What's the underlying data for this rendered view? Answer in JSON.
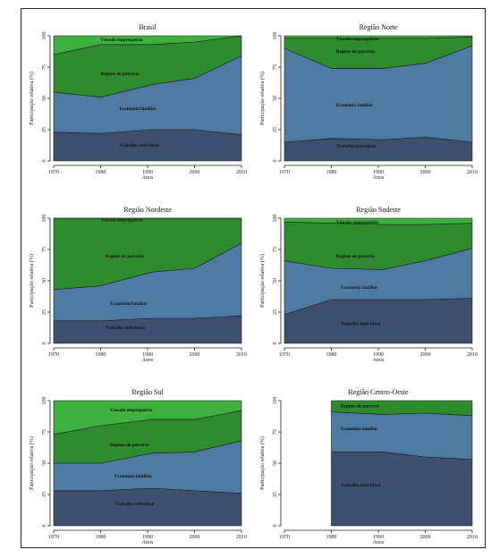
{
  "colors": {
    "trabalho": "#3f4f70",
    "economia": "#4f7ba3",
    "regime": "#2e8b2e",
    "vinculo": "#3fb03f",
    "outline": "#1a1a1a"
  },
  "chart_data": [
    {
      "type": "area",
      "title": "Brasil",
      "xlabel": "Anos",
      "ylabel": "Participação relativa (%)",
      "x": [
        1970,
        1980,
        1991,
        2000,
        2010
      ],
      "xlim": [
        1970,
        2010
      ],
      "ylim": [
        0,
        100
      ],
      "xticks": [
        "1970",
        "1980",
        "1990",
        "2000",
        "2010"
      ],
      "yticks": [
        "0",
        "25",
        "50",
        "75",
        "100"
      ],
      "stacked": true,
      "grid": false,
      "series": [
        {
          "name": "Trabalho individual",
          "values": [
            23,
            22,
            25,
            25,
            21
          ]
        },
        {
          "name": "Economia familiar",
          "values": [
            32,
            29,
            36,
            41,
            63
          ]
        },
        {
          "name": "Regime de parceria",
          "values": [
            30,
            42,
            32,
            29,
            16
          ]
        },
        {
          "name": "Vínculo empregatício",
          "values": [
            15,
            7,
            7,
            5,
            0
          ]
        }
      ],
      "labels": [
        {
          "series": 0,
          "x": 1984,
          "y": 13
        },
        {
          "series": 1,
          "x": 1984,
          "y": 42
        },
        {
          "series": 2,
          "x": 1980,
          "y": 70
        },
        {
          "series": 3,
          "x": 1980,
          "y": 97
        }
      ]
    },
    {
      "type": "area",
      "title": "Região Norte",
      "xlabel": "Anos",
      "ylabel": "Participação relativa (%)",
      "x": [
        1970,
        1980,
        1991,
        2000,
        2010
      ],
      "xlim": [
        1970,
        2010
      ],
      "ylim": [
        0,
        100
      ],
      "xticks": [
        "1970",
        "1980",
        "1990",
        "2000",
        "2010"
      ],
      "yticks": [
        "0",
        "25",
        "50",
        "75",
        "100"
      ],
      "stacked": true,
      "grid": false,
      "series": [
        {
          "name": "Trabalho individual",
          "values": [
            15,
            18,
            17,
            19,
            15
          ]
        },
        {
          "name": "Economia familiar",
          "values": [
            75,
            56,
            57,
            59,
            77
          ]
        },
        {
          "name": "Regime de parceria",
          "values": [
            8,
            24,
            24,
            20,
            7
          ]
        },
        {
          "name": "Vínculo empregatício",
          "values": [
            2,
            2,
            2,
            2,
            1
          ]
        }
      ],
      "labels": [
        {
          "series": 0,
          "x": 1981,
          "y": 12
        },
        {
          "series": 1,
          "x": 1981,
          "y": 45
        },
        {
          "series": 2,
          "x": 1981,
          "y": 88
        },
        {
          "series": 3,
          "x": 1981,
          "y": 98
        }
      ]
    },
    {
      "type": "area",
      "title": "Região Nordeste",
      "xlabel": "Anos",
      "ylabel": "Participação relativa (%)",
      "x": [
        1970,
        1980,
        1991,
        2000,
        2010
      ],
      "xlim": [
        1970,
        2010
      ],
      "ylim": [
        0,
        100
      ],
      "xticks": [
        "1970",
        "1980",
        "1990",
        "2000",
        "2010"
      ],
      "yticks": [
        "0",
        "25",
        "50",
        "75",
        "100"
      ],
      "stacked": true,
      "grid": false,
      "series": [
        {
          "name": "Trabalho individual",
          "values": [
            18,
            18,
            20,
            20,
            22
          ]
        },
        {
          "name": "Economia familiar",
          "values": [
            25,
            28,
            37,
            40,
            58
          ]
        },
        {
          "name": "Regime de parceria",
          "values": [
            57,
            54,
            43,
            40,
            20
          ]
        },
        {
          "name": "Vínculo empregatício",
          "values": [
            0,
            0,
            0,
            0,
            0
          ]
        }
      ],
      "labels": [
        {
          "series": 0,
          "x": 1981,
          "y": 13
        },
        {
          "series": 1,
          "x": 1982,
          "y": 32
        },
        {
          "series": 2,
          "x": 1981,
          "y": 70
        },
        {
          "series": 3,
          "x": 1980,
          "y": 99
        }
      ]
    },
    {
      "type": "area",
      "title": "Região Sudeste",
      "xlabel": "Anos",
      "ylabel": "Participação relativa (%)",
      "x": [
        1970,
        1980,
        1991,
        2000,
        2010
      ],
      "xlim": [
        1970,
        2010
      ],
      "ylim": [
        0,
        100
      ],
      "xticks": [
        "1970",
        "1980",
        "1990",
        "2000",
        "2010"
      ],
      "yticks": [
        "0",
        "25",
        "50",
        "75",
        "100"
      ],
      "stacked": true,
      "grid": false,
      "series": [
        {
          "name": "Trabalho individual",
          "values": [
            23,
            35,
            35,
            35,
            36
          ]
        },
        {
          "name": "Economia familiar",
          "values": [
            43,
            25,
            24,
            31,
            40
          ]
        },
        {
          "name": "Regime de parceria",
          "values": [
            31,
            36,
            36,
            29,
            20
          ]
        },
        {
          "name": "Vínculo empregatício",
          "values": [
            3,
            4,
            5,
            5,
            4
          ]
        }
      ],
      "labels": [
        {
          "series": 0,
          "x": 1982,
          "y": 16
        },
        {
          "series": 1,
          "x": 1982,
          "y": 45
        },
        {
          "series": 2,
          "x": 1981,
          "y": 70
        },
        {
          "series": 3,
          "x": 1981,
          "y": 97
        }
      ]
    },
    {
      "type": "area",
      "title": "Região Sul",
      "xlabel": "Anos",
      "ylabel": "Participação relativa (%)",
      "x": [
        1970,
        1980,
        1991,
        2000,
        2010
      ],
      "xlim": [
        1970,
        2010
      ],
      "ylim": [
        0,
        100
      ],
      "xticks": [
        "1970",
        "1980",
        "1990",
        "2000",
        "2010"
      ],
      "yticks": [
        "0",
        "25",
        "50",
        "75",
        "100"
      ],
      "stacked": true,
      "grid": false,
      "series": [
        {
          "name": "Trabalho individual",
          "values": [
            28,
            28,
            30,
            28,
            26
          ]
        },
        {
          "name": "Economia familiar",
          "values": [
            22,
            22,
            28,
            31,
            42
          ]
        },
        {
          "name": "Regime de parceria",
          "values": [
            23,
            30,
            27,
            26,
            24
          ]
        },
        {
          "name": "Vínculo empregatício",
          "values": [
            27,
            20,
            15,
            15,
            8
          ]
        }
      ],
      "labels": [
        {
          "series": 0,
          "x": 1983,
          "y": 18
        },
        {
          "series": 1,
          "x": 1983,
          "y": 40
        },
        {
          "series": 2,
          "x": 1982,
          "y": 65
        },
        {
          "series": 3,
          "x": 1982,
          "y": 93
        }
      ]
    },
    {
      "type": "area",
      "title": "Região Centro-Oeste",
      "xlabel": "Anos",
      "ylabel": "Participação relativa (%)",
      "x": [
        1980,
        1991,
        2000,
        2010
      ],
      "xlim": [
        1970,
        2010
      ],
      "ylim": [
        0,
        100
      ],
      "xticks": [
        "1970",
        "1980",
        "1990",
        "2000",
        "2010"
      ],
      "yticks": [
        "0",
        "25",
        "50",
        "75",
        "100"
      ],
      "stacked": true,
      "grid": false,
      "series": [
        {
          "name": "Trabalho individual",
          "values": [
            59,
            59,
            55,
            53
          ]
        },
        {
          "name": "Economia familiar",
          "values": [
            32,
            30,
            35,
            35
          ]
        },
        {
          "name": "Regime de parceria",
          "values": [
            9,
            11,
            10,
            12
          ]
        }
      ],
      "labels": [
        {
          "series": 0,
          "x": 1982,
          "y": 33
        },
        {
          "series": 1,
          "x": 1982,
          "y": 78
        },
        {
          "series": 2,
          "x": 1982,
          "y": 96
        }
      ]
    }
  ],
  "label_texts": [
    "Trabalho individual",
    "Economia familiar",
    "Regime de parceria",
    "Vínculo empregatício"
  ],
  "label_texts_alt": {
    "5": [
      "Trabalho individual",
      "Economia familiar",
      "Regime de parceria"
    ]
  }
}
